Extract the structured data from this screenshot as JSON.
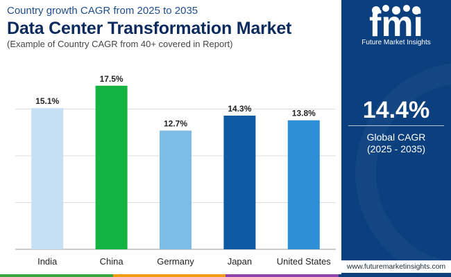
{
  "header": {
    "subtitle": "Country growth CAGR from 2025 to 2035",
    "title": "Data Center Transformation Market",
    "note": "(Example of Country CAGR from 40+ covered in Report)"
  },
  "chart_data": {
    "type": "bar",
    "title": "Data Center Transformation Market",
    "categories": [
      "India",
      "China",
      "Germany",
      "Japan",
      "United States"
    ],
    "values": [
      15.1,
      17.5,
      12.7,
      14.3,
      13.8
    ],
    "value_labels": [
      "15.1%",
      "17.5%",
      "12.7%",
      "14.3%",
      "13.8%"
    ],
    "bar_colors": [
      "#c5e0f4",
      "#13b441",
      "#7dbce4",
      "#0d5aa0",
      "#2e8fd6"
    ],
    "ylim": [
      0,
      20
    ],
    "grid": true,
    "xlabel": "",
    "ylabel": ""
  },
  "sidebar": {
    "logo_letters": "fmi",
    "logo_text": "Future Market Insights",
    "cagr_value": "14.4%",
    "cagr_label": "Global CAGR",
    "cagr_period": "(2025 - 2035)",
    "website": "www.futuremarketinsights.com"
  },
  "colors": {
    "panel": "#0b3f7e",
    "title": "#0b2a5e",
    "footer": [
      "#3aa640",
      "#f39c12",
      "#8e44ad",
      "#0b3f7e"
    ]
  }
}
